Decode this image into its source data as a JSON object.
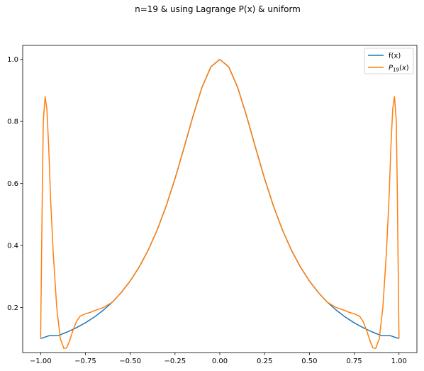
{
  "chart_data": {
    "type": "line",
    "title": "n=19 & using Lagrange P(x) & uniform",
    "xlabel": "",
    "ylabel": "",
    "xlim": [
      -1.1,
      1.1
    ],
    "ylim": [
      0.055,
      1.045
    ],
    "xticks": [
      -1.0,
      -0.75,
      -0.5,
      -0.25,
      0.0,
      0.25,
      0.5,
      0.75,
      1.0
    ],
    "xtick_labels": [
      "−1.00",
      "−0.75",
      "−0.50",
      "−0.25",
      "0.00",
      "0.25",
      "0.50",
      "0.75",
      "1.00"
    ],
    "yticks": [
      0.2,
      0.4,
      0.6,
      0.8,
      1.0
    ],
    "ytick_labels": [
      "0.2",
      "0.4",
      "0.6",
      "0.8",
      "1.0"
    ],
    "grid": false,
    "legend_position": "top-right",
    "series": [
      {
        "name": "f(x)",
        "color": "#1f77b4",
        "points": [
          [
            -1.0,
            0.1
          ],
          [
            -0.95,
            0.1097
          ],
          [
            -0.9,
            0.1099
          ],
          [
            -0.85,
            0.1216
          ],
          [
            -0.8,
            0.1351
          ],
          [
            -0.75,
            0.1509
          ],
          [
            -0.7,
            0.1695
          ],
          [
            -0.65,
            0.1916
          ],
          [
            -0.6,
            0.2174
          ],
          [
            -0.55,
            0.2485
          ],
          [
            -0.5,
            0.2857
          ],
          [
            -0.45,
            0.3306
          ],
          [
            -0.4,
            0.3846
          ],
          [
            -0.35,
            0.4494
          ],
          [
            -0.3,
            0.5263
          ],
          [
            -0.25,
            0.6154
          ],
          [
            -0.2,
            0.7143
          ],
          [
            -0.15,
            0.8163
          ],
          [
            -0.1,
            0.9091
          ],
          [
            -0.05,
            0.9756
          ],
          [
            0.0,
            1.0
          ],
          [
            0.05,
            0.9756
          ],
          [
            0.1,
            0.9091
          ],
          [
            0.15,
            0.8163
          ],
          [
            0.2,
            0.7143
          ],
          [
            0.25,
            0.6154
          ],
          [
            0.3,
            0.5263
          ],
          [
            0.35,
            0.4494
          ],
          [
            0.4,
            0.3846
          ],
          [
            0.45,
            0.3306
          ],
          [
            0.5,
            0.2857
          ],
          [
            0.55,
            0.2485
          ],
          [
            0.6,
            0.2174
          ],
          [
            0.65,
            0.1916
          ],
          [
            0.7,
            0.1695
          ],
          [
            0.75,
            0.1509
          ],
          [
            0.8,
            0.1351
          ],
          [
            0.85,
            0.1216
          ],
          [
            0.9,
            0.1099
          ],
          [
            0.95,
            0.1097
          ],
          [
            1.0,
            0.1
          ]
        ]
      },
      {
        "name": "P_19(x)",
        "color": "#ff7f0e",
        "points": [
          [
            -1.0,
            0.1
          ],
          [
            -0.995,
            0.35
          ],
          [
            -0.99,
            0.6
          ],
          [
            -0.985,
            0.8
          ],
          [
            -0.975,
            0.88
          ],
          [
            -0.965,
            0.84
          ],
          [
            -0.955,
            0.72
          ],
          [
            -0.945,
            0.56
          ],
          [
            -0.93,
            0.38
          ],
          [
            -0.91,
            0.2
          ],
          [
            -0.89,
            0.1
          ],
          [
            -0.87,
            0.068
          ],
          [
            -0.855,
            0.07
          ],
          [
            -0.84,
            0.09
          ],
          [
            -0.82,
            0.125
          ],
          [
            -0.8,
            0.155
          ],
          [
            -0.78,
            0.172
          ],
          [
            -0.75,
            0.18
          ],
          [
            -0.72,
            0.185
          ],
          [
            -0.7,
            0.19
          ],
          [
            -0.65,
            0.2
          ],
          [
            -0.6,
            0.2174
          ],
          [
            -0.55,
            0.2485
          ],
          [
            -0.5,
            0.2857
          ],
          [
            -0.45,
            0.3306
          ],
          [
            -0.4,
            0.3846
          ],
          [
            -0.35,
            0.4494
          ],
          [
            -0.3,
            0.5263
          ],
          [
            -0.25,
            0.6154
          ],
          [
            -0.2,
            0.7143
          ],
          [
            -0.15,
            0.8163
          ],
          [
            -0.1,
            0.9091
          ],
          [
            -0.05,
            0.9756
          ],
          [
            0.0,
            1.0
          ],
          [
            0.05,
            0.9756
          ],
          [
            0.1,
            0.9091
          ],
          [
            0.15,
            0.8163
          ],
          [
            0.2,
            0.7143
          ],
          [
            0.25,
            0.6154
          ],
          [
            0.3,
            0.5263
          ],
          [
            0.35,
            0.4494
          ],
          [
            0.4,
            0.3846
          ],
          [
            0.45,
            0.3306
          ],
          [
            0.5,
            0.2857
          ],
          [
            0.55,
            0.2485
          ],
          [
            0.6,
            0.2174
          ],
          [
            0.65,
            0.2
          ],
          [
            0.7,
            0.19
          ],
          [
            0.72,
            0.185
          ],
          [
            0.75,
            0.18
          ],
          [
            0.78,
            0.172
          ],
          [
            0.8,
            0.155
          ],
          [
            0.82,
            0.125
          ],
          [
            0.84,
            0.09
          ],
          [
            0.855,
            0.07
          ],
          [
            0.87,
            0.068
          ],
          [
            0.89,
            0.1
          ],
          [
            0.91,
            0.2
          ],
          [
            0.93,
            0.38
          ],
          [
            0.945,
            0.56
          ],
          [
            0.955,
            0.72
          ],
          [
            0.965,
            0.84
          ],
          [
            0.975,
            0.88
          ],
          [
            0.985,
            0.8
          ],
          [
            0.99,
            0.6
          ],
          [
            0.995,
            0.35
          ],
          [
            1.0,
            0.1
          ]
        ]
      }
    ]
  }
}
